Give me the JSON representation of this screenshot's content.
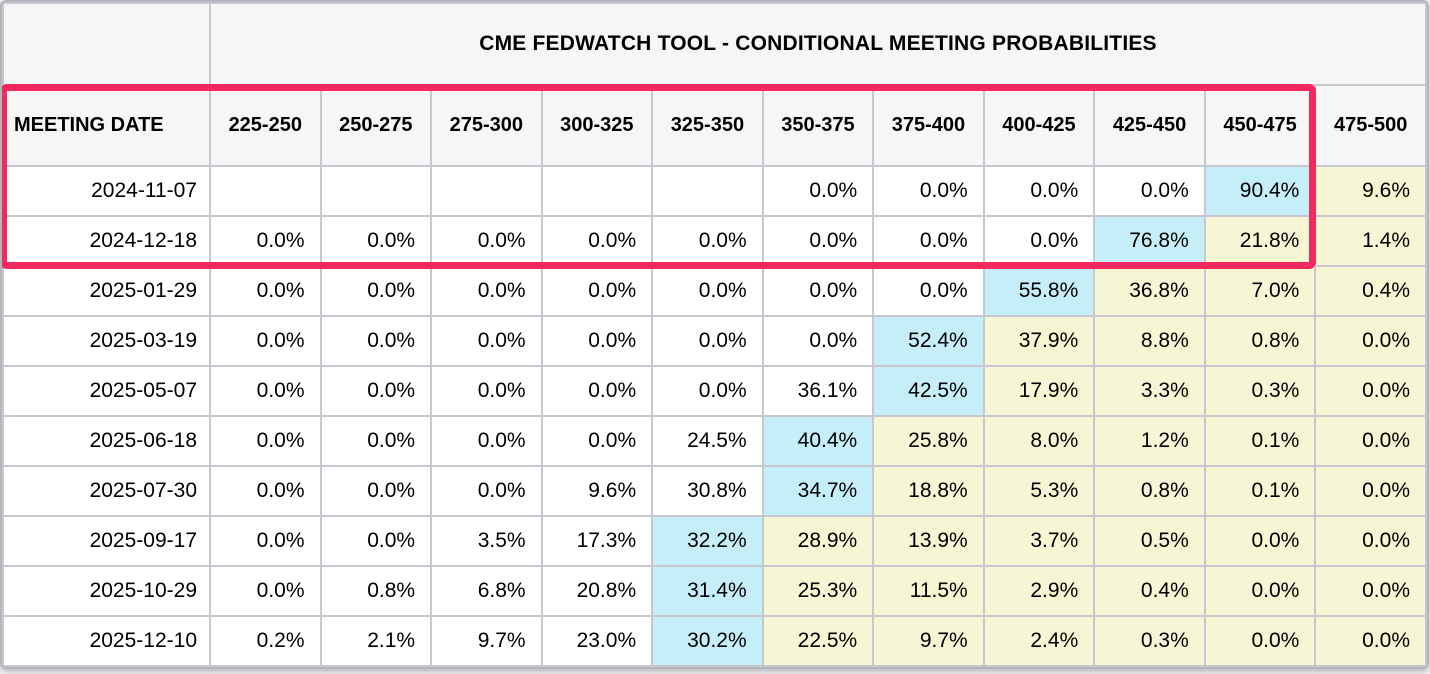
{
  "chart_data": {
    "type": "table",
    "title": "CME FEDWATCH TOOL - CONDITIONAL MEETING PROBABILITIES",
    "row_header": "MEETING DATE",
    "columns": [
      "225-250",
      "250-275",
      "275-300",
      "300-325",
      "325-350",
      "350-375",
      "375-400",
      "400-425",
      "425-450",
      "450-475",
      "475-500"
    ],
    "rows": [
      {
        "date": "2024-11-07",
        "values": [
          "",
          "",
          "",
          "",
          "",
          "0.0%",
          "0.0%",
          "0.0%",
          "0.0%",
          "90.4%",
          "9.6%"
        ],
        "highlight": [
          "",
          "",
          "",
          "",
          "",
          "",
          "",
          "",
          "",
          "cyan",
          "yellow"
        ]
      },
      {
        "date": "2024-12-18",
        "values": [
          "0.0%",
          "0.0%",
          "0.0%",
          "0.0%",
          "0.0%",
          "0.0%",
          "0.0%",
          "0.0%",
          "76.8%",
          "21.8%",
          "1.4%"
        ],
        "highlight": [
          "",
          "",
          "",
          "",
          "",
          "",
          "",
          "",
          "cyan",
          "yellow",
          "yellow"
        ]
      },
      {
        "date": "2025-01-29",
        "values": [
          "0.0%",
          "0.0%",
          "0.0%",
          "0.0%",
          "0.0%",
          "0.0%",
          "0.0%",
          "55.8%",
          "36.8%",
          "7.0%",
          "0.4%"
        ],
        "highlight": [
          "",
          "",
          "",
          "",
          "",
          "",
          "",
          "cyan",
          "yellow",
          "yellow",
          "yellow"
        ]
      },
      {
        "date": "2025-03-19",
        "values": [
          "0.0%",
          "0.0%",
          "0.0%",
          "0.0%",
          "0.0%",
          "0.0%",
          "52.4%",
          "37.9%",
          "8.8%",
          "0.8%",
          "0.0%"
        ],
        "highlight": [
          "",
          "",
          "",
          "",
          "",
          "",
          "cyan",
          "yellow",
          "yellow",
          "yellow",
          "yellow"
        ]
      },
      {
        "date": "2025-05-07",
        "values": [
          "0.0%",
          "0.0%",
          "0.0%",
          "0.0%",
          "0.0%",
          "36.1%",
          "42.5%",
          "17.9%",
          "3.3%",
          "0.3%",
          "0.0%"
        ],
        "highlight": [
          "",
          "",
          "",
          "",
          "",
          "",
          "cyan",
          "yellow",
          "yellow",
          "yellow",
          "yellow"
        ]
      },
      {
        "date": "2025-06-18",
        "values": [
          "0.0%",
          "0.0%",
          "0.0%",
          "0.0%",
          "24.5%",
          "40.4%",
          "25.8%",
          "8.0%",
          "1.2%",
          "0.1%",
          "0.0%"
        ],
        "highlight": [
          "",
          "",
          "",
          "",
          "",
          "cyan",
          "yellow",
          "yellow",
          "yellow",
          "yellow",
          "yellow"
        ]
      },
      {
        "date": "2025-07-30",
        "values": [
          "0.0%",
          "0.0%",
          "0.0%",
          "9.6%",
          "30.8%",
          "34.7%",
          "18.8%",
          "5.3%",
          "0.8%",
          "0.1%",
          "0.0%"
        ],
        "highlight": [
          "",
          "",
          "",
          "",
          "",
          "cyan",
          "yellow",
          "yellow",
          "yellow",
          "yellow",
          "yellow"
        ]
      },
      {
        "date": "2025-09-17",
        "values": [
          "0.0%",
          "0.0%",
          "3.5%",
          "17.3%",
          "32.2%",
          "28.9%",
          "13.9%",
          "3.7%",
          "0.5%",
          "0.0%",
          "0.0%"
        ],
        "highlight": [
          "",
          "",
          "",
          "",
          "cyan",
          "yellow",
          "yellow",
          "yellow",
          "yellow",
          "yellow",
          "yellow"
        ]
      },
      {
        "date": "2025-10-29",
        "values": [
          "0.0%",
          "0.8%",
          "6.8%",
          "20.8%",
          "31.4%",
          "25.3%",
          "11.5%",
          "2.9%",
          "0.4%",
          "0.0%",
          "0.0%"
        ],
        "highlight": [
          "",
          "",
          "",
          "",
          "cyan",
          "yellow",
          "yellow",
          "yellow",
          "yellow",
          "yellow",
          "yellow"
        ]
      },
      {
        "date": "2025-12-10",
        "values": [
          "0.2%",
          "2.1%",
          "9.7%",
          "23.0%",
          "30.2%",
          "22.5%",
          "9.7%",
          "2.4%",
          "0.3%",
          "0.0%",
          "0.0%"
        ],
        "highlight": [
          "",
          "",
          "",
          "",
          "cyan",
          "yellow",
          "yellow",
          "yellow",
          "yellow",
          "yellow",
          "yellow"
        ]
      }
    ]
  },
  "annotation": {
    "shape": "rectangle-outline",
    "color": "#f1295f",
    "covers_rows": [
      "MEETING DATE header row",
      "2024-11-07",
      "2024-12-18"
    ],
    "covers_columns_from": "MEETING DATE",
    "covers_columns_to": "450-475"
  },
  "colors": {
    "modal_cell_cyan": "#c5eef8",
    "tail_cell_yellow": "#f6f6d5",
    "header_background": "#f6f6f7",
    "grid_line": "#c7c7cf",
    "annotation_pink": "#f1295f"
  }
}
